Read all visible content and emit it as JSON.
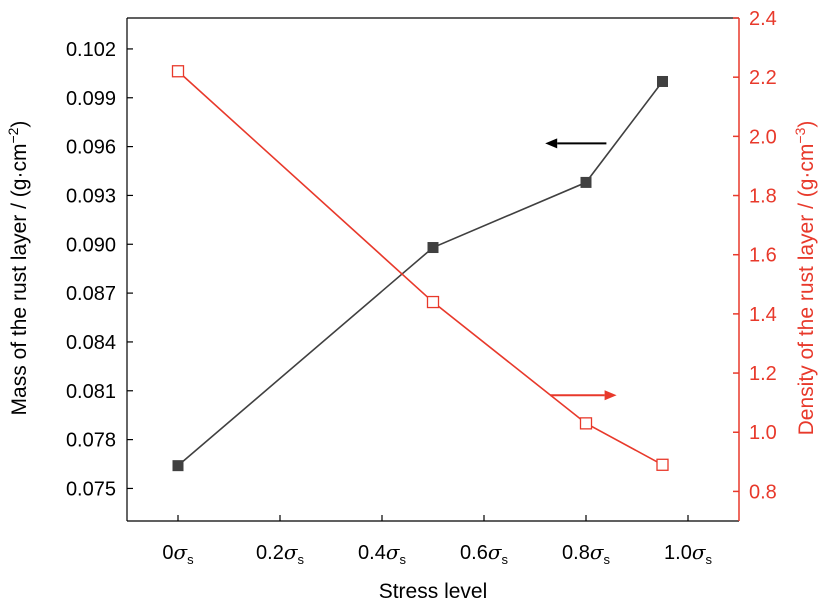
{
  "chart_data": {
    "type": "line",
    "title": "",
    "xlabel": "Stress level",
    "x": [
      0,
      0.5,
      0.8,
      0.95
    ],
    "xlim": [
      -0.1,
      1.1
    ],
    "x_ticks": [
      0,
      0.2,
      0.4,
      0.6,
      0.8,
      1.0
    ],
    "x_tick_labels": [
      "0",
      "0.2",
      "0.4",
      "0.6",
      "0.8",
      "1.0"
    ],
    "x_tick_symbol": "σ",
    "x_tick_subscript": "s",
    "y_left": {
      "label": "Mass of the rust layer / (g·cm",
      "label_exponent": "−2",
      "label_close": ")",
      "ylim": [
        0.073,
        0.1039
      ],
      "ticks": [
        0.075,
        0.078,
        0.081,
        0.084,
        0.087,
        0.09,
        0.093,
        0.096,
        0.099,
        0.102
      ],
      "tick_labels": [
        "0.075",
        "0.078",
        "0.081",
        "0.084",
        "0.087",
        "0.090",
        "0.093",
        "0.096",
        "0.099",
        "0.102"
      ],
      "color": "#000000"
    },
    "y_right": {
      "label": "Density of the rust layer / (g·cm",
      "label_exponent": "−3",
      "label_close": ")",
      "ylim": [
        0.7,
        2.4
      ],
      "ticks": [
        0.8,
        1.0,
        1.2,
        1.4,
        1.6,
        1.8,
        2.0,
        2.2,
        2.4
      ],
      "tick_labels": [
        "0.8",
        "1.0",
        "1.2",
        "1.4",
        "1.6",
        "1.8",
        "2.0",
        "2.2",
        "2.4"
      ],
      "color": "#e8392b"
    },
    "series": [
      {
        "axis": "left",
        "marker": "filled-square",
        "color": "#404040",
        "values": [
          0.0764,
          0.0898,
          0.0938,
          0.1
        ]
      },
      {
        "axis": "right",
        "marker": "open-square",
        "color": "#e8392b",
        "values": [
          2.22,
          1.44,
          1.03,
          0.89
        ]
      }
    ],
    "annotations": [
      {
        "type": "arrow",
        "direction": "left",
        "color": "#000000",
        "x_from": 0.84,
        "x_to": 0.72,
        "y_axis": "left",
        "y": 0.0962
      },
      {
        "type": "arrow",
        "direction": "right",
        "color": "#e8392b",
        "x_from": 0.73,
        "x_to": 0.86,
        "y_axis": "right",
        "y": 1.125
      }
    ],
    "grid": false
  }
}
